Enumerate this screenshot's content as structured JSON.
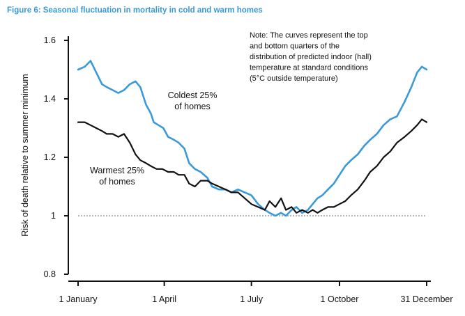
{
  "figure_title": "Figure 6: Seasonal fluctuation in mortality in cold and warm homes",
  "note_lines": [
    "Note: The curves represent the top",
    "and bottom quarters of the",
    "distribution of predicted indoor (hall)",
    "temperature at standard conditions",
    "(5°C outside temperature)"
  ],
  "chart_data": {
    "type": "line",
    "title": "Figure 6: Seasonal fluctuation in mortality in cold and warm homes",
    "ylabel": "Risk of death relative to summer minimum",
    "xlabel": "",
    "x_ticks": [
      {
        "day": 1,
        "label": "1 January"
      },
      {
        "day": 91,
        "label": "1 April"
      },
      {
        "day": 182,
        "label": "1 July"
      },
      {
        "day": 274,
        "label": "1 October"
      },
      {
        "day": 365,
        "label": "31 December"
      }
    ],
    "y_ticks": [
      {
        "value": 0.8,
        "label": "0.8"
      },
      {
        "value": 1.0,
        "label": "1"
      },
      {
        "value": 1.2,
        "label": "1.2"
      },
      {
        "value": 1.4,
        "label": "1.4"
      },
      {
        "value": 1.6,
        "label": "1.6"
      }
    ],
    "xlim": [
      1,
      365
    ],
    "ylim": [
      0.8,
      1.6
    ],
    "reference_line": {
      "value": 1.0,
      "style": "dotted"
    },
    "grid": false,
    "series": [
      {
        "name": "Coldest 25% of homes",
        "label_lines": [
          "Coldest 25%",
          "of homes"
        ],
        "color": "#3a9ad9",
        "x": [
          1,
          8,
          14,
          20,
          26,
          31,
          37,
          43,
          49,
          55,
          61,
          66,
          72,
          77,
          80,
          85,
          90,
          95,
          101,
          106,
          112,
          117,
          123,
          129,
          136,
          141,
          148,
          155,
          161,
          168,
          175,
          182,
          189,
          196,
          201,
          207,
          213,
          218,
          224,
          229,
          235,
          241,
          246,
          251,
          256,
          262,
          268,
          274,
          280,
          286,
          293,
          300,
          306,
          313,
          320,
          327,
          334,
          342,
          349,
          355,
          360,
          365
        ],
        "y": [
          1.5,
          1.51,
          1.53,
          1.49,
          1.45,
          1.44,
          1.43,
          1.42,
          1.43,
          1.45,
          1.46,
          1.44,
          1.38,
          1.35,
          1.32,
          1.31,
          1.3,
          1.27,
          1.26,
          1.25,
          1.23,
          1.18,
          1.16,
          1.15,
          1.13,
          1.1,
          1.09,
          1.09,
          1.08,
          1.09,
          1.08,
          1.07,
          1.04,
          1.02,
          1.01,
          1.0,
          1.01,
          1.0,
          1.02,
          1.03,
          1.01,
          1.02,
          1.04,
          1.06,
          1.07,
          1.09,
          1.11,
          1.14,
          1.17,
          1.19,
          1.21,
          1.24,
          1.26,
          1.28,
          1.31,
          1.33,
          1.34,
          1.39,
          1.44,
          1.49,
          1.51,
          1.5
        ]
      },
      {
        "name": "Warmest 25% of homes",
        "label_lines": [
          "Warmest 25%",
          "of homes"
        ],
        "color": "#111111",
        "x": [
          1,
          8,
          14,
          20,
          26,
          31,
          37,
          43,
          49,
          55,
          61,
          66,
          72,
          77,
          83,
          89,
          95,
          101,
          106,
          112,
          117,
          123,
          129,
          136,
          141,
          148,
          155,
          161,
          168,
          175,
          182,
          189,
          196,
          201,
          207,
          213,
          218,
          224,
          229,
          235,
          241,
          246,
          251,
          256,
          262,
          268,
          274,
          280,
          286,
          293,
          300,
          306,
          313,
          320,
          327,
          334,
          342,
          349,
          355,
          360,
          365
        ],
        "y": [
          1.32,
          1.32,
          1.31,
          1.3,
          1.29,
          1.28,
          1.28,
          1.27,
          1.28,
          1.25,
          1.21,
          1.19,
          1.18,
          1.17,
          1.16,
          1.16,
          1.15,
          1.15,
          1.14,
          1.14,
          1.11,
          1.1,
          1.12,
          1.12,
          1.11,
          1.1,
          1.09,
          1.08,
          1.08,
          1.06,
          1.04,
          1.03,
          1.02,
          1.05,
          1.03,
          1.06,
          1.02,
          1.03,
          1.01,
          1.02,
          1.01,
          1.02,
          1.01,
          1.02,
          1.03,
          1.03,
          1.04,
          1.05,
          1.07,
          1.09,
          1.12,
          1.15,
          1.17,
          1.2,
          1.22,
          1.25,
          1.27,
          1.29,
          1.31,
          1.33,
          1.32
        ]
      }
    ]
  }
}
